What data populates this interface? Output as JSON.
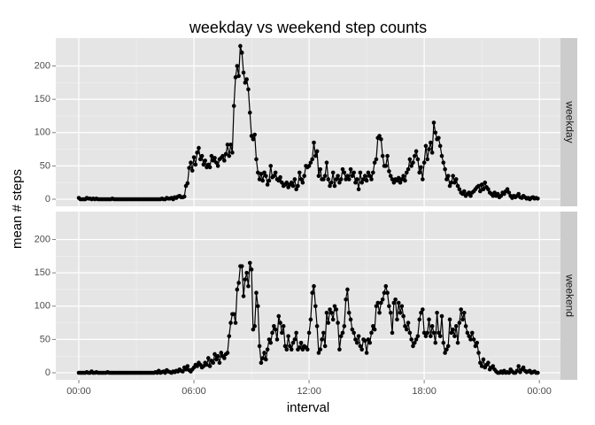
{
  "chart_data": {
    "type": "line",
    "title": "weekday vs weekend step counts",
    "xlabel": "interval",
    "ylabel": "mean # steps",
    "facet": "rows",
    "grid": true,
    "point_color": "#000000",
    "x": [
      0,
      5,
      10,
      15,
      20,
      25,
      30,
      35,
      40,
      45,
      50,
      55,
      60,
      65,
      70,
      75,
      80,
      85,
      90,
      95,
      100,
      105,
      110,
      115,
      120,
      125,
      130,
      135,
      140,
      145,
      150,
      155,
      160,
      165,
      170,
      175,
      180,
      185,
      190,
      195,
      200,
      205,
      210,
      215,
      220,
      225,
      230,
      235,
      240,
      245,
      250,
      255,
      260,
      265,
      270,
      275,
      280,
      285,
      290,
      295,
      300,
      305,
      310,
      315,
      320,
      325,
      330,
      335,
      340,
      345,
      350,
      355,
      360,
      365,
      370,
      375,
      380,
      385,
      390,
      395,
      400,
      405,
      410,
      415,
      420,
      425,
      430,
      435,
      440,
      445,
      450,
      455,
      460,
      465,
      470,
      475,
      480,
      485,
      490,
      495,
      500,
      505,
      510,
      515,
      520,
      525,
      530,
      535,
      540,
      545,
      550,
      555,
      560,
      565,
      570,
      575,
      580,
      585,
      590,
      595,
      600,
      605,
      610,
      615,
      620,
      625,
      630,
      635,
      640,
      645,
      650,
      655,
      660,
      665,
      670,
      675,
      680,
      685,
      690,
      695,
      700,
      705,
      710,
      715,
      720,
      725,
      730,
      735,
      740,
      745,
      750,
      755,
      760,
      765,
      770,
      775,
      780,
      785,
      790,
      795,
      800,
      805,
      810,
      815,
      820,
      825,
      830,
      835,
      840,
      845,
      850,
      855,
      860,
      865,
      870,
      875,
      880,
      885,
      890,
      895,
      900,
      905,
      910,
      915,
      920,
      925,
      930,
      935,
      940,
      945,
      950,
      955,
      960,
      965,
      970,
      975,
      980,
      985,
      990,
      995,
      1000,
      1005,
      1010,
      1015,
      1020,
      1025,
      1030,
      1035,
      1040,
      1045,
      1050,
      1055,
      1060,
      1065,
      1070,
      1075,
      1080,
      1085,
      1090,
      1095,
      1100,
      1105,
      1110,
      1115,
      1120,
      1125,
      1130,
      1135,
      1140,
      1145,
      1150,
      1155,
      1160,
      1165,
      1170,
      1175,
      1180,
      1185,
      1190,
      1195,
      1200,
      1205,
      1210,
      1215,
      1220,
      1225,
      1230,
      1235,
      1240,
      1245,
      1250,
      1255,
      1260,
      1265,
      1270,
      1275,
      1280,
      1285,
      1290,
      1295,
      1300,
      1305,
      1310,
      1315,
      1320,
      1325,
      1330,
      1335,
      1340,
      1345,
      1350,
      1355,
      1360,
      1365,
      1370,
      1375,
      1380,
      1385,
      1390,
      1395,
      1400,
      1405,
      1410,
      1415,
      1420,
      1425,
      1430,
      1435
    ],
    "xlim": [
      -72,
      1506
    ],
    "xticks": [
      {
        "value": 0,
        "label": "00:00"
      },
      {
        "value": 360,
        "label": "06:00"
      },
      {
        "value": 720,
        "label": "12:00"
      },
      {
        "value": 1080,
        "label": "18:00"
      },
      {
        "value": 1440,
        "label": "00:00"
      }
    ],
    "ylim": [
      -10.6,
      241.9
    ],
    "yticks": [
      0,
      50,
      100,
      150,
      200
    ],
    "series": [
      {
        "name": "weekday",
        "color": "#000000",
        "values": [
          2,
          0,
          0,
          0,
          0,
          2,
          1,
          1,
          0,
          1,
          0,
          1,
          0,
          0,
          0,
          0,
          0,
          0,
          0,
          0,
          0,
          1,
          0,
          0,
          0,
          0,
          0,
          0,
          0,
          0,
          0,
          0,
          0,
          0,
          0,
          0,
          0,
          0,
          0,
          0,
          0,
          0,
          0,
          0,
          0,
          0,
          0,
          0,
          0,
          0,
          0,
          0,
          1,
          0,
          0,
          2,
          1,
          1,
          2,
          0,
          3,
          2,
          4,
          5,
          3,
          3,
          4,
          20,
          24,
          47,
          55,
          43,
          63,
          52,
          70,
          77,
          60,
          65,
          52,
          58,
          48,
          52,
          48,
          65,
          58,
          62,
          55,
          50,
          60,
          62,
          65,
          58,
          68,
          82,
          65,
          82,
          70,
          140,
          183,
          200,
          185,
          230,
          220,
          190,
          175,
          180,
          165,
          130,
          95,
          90,
          97,
          60,
          40,
          30,
          38,
          28,
          40,
          35,
          22,
          28,
          50,
          33,
          35,
          40,
          30,
          28,
          33,
          25,
          20,
          22,
          25,
          18,
          22,
          25,
          20,
          30,
          15,
          20,
          40,
          30,
          25,
          35,
          50,
          48,
          50,
          55,
          60,
          85,
          65,
          72,
          35,
          45,
          30,
          30,
          35,
          55,
          30,
          20,
          25,
          40,
          20,
          30,
          35,
          25,
          30,
          45,
          40,
          30,
          35,
          30,
          45,
          35,
          40,
          25,
          30,
          15,
          40,
          25,
          30,
          35,
          28,
          40,
          35,
          30,
          40,
          55,
          60,
          92,
          95,
          90,
          65,
          50,
          50,
          65,
          42,
          35,
          30,
          25,
          30,
          28,
          32,
          25,
          30,
          35,
          28,
          40,
          45,
          60,
          50,
          55,
          65,
          72,
          60,
          40,
          48,
          30,
          55,
          80,
          60,
          75,
          85,
          70,
          115,
          100,
          90,
          92,
          80,
          65,
          55,
          45,
          30,
          35,
          20,
          25,
          35,
          25,
          30,
          20,
          15,
          10,
          8,
          12,
          5,
          8,
          10,
          5,
          10,
          12,
          15,
          18,
          20,
          12,
          22,
          15,
          25,
          18,
          15,
          10,
          8,
          5,
          10,
          5,
          8,
          3,
          5,
          10,
          8,
          12,
          15,
          10,
          5,
          2,
          5,
          3,
          5,
          8,
          3,
          2,
          5,
          3,
          1,
          2,
          0,
          2,
          3,
          1,
          2,
          1
        ]
      },
      {
        "name": "weekend",
        "color": "#000000",
        "values": [
          0,
          0,
          0,
          0,
          0,
          1,
          0,
          0,
          2,
          0,
          0,
          1,
          0,
          0,
          0,
          0,
          0,
          0,
          1,
          0,
          0,
          0,
          0,
          0,
          0,
          0,
          0,
          0,
          0,
          0,
          0,
          0,
          0,
          0,
          0,
          0,
          0,
          0,
          0,
          0,
          0,
          0,
          0,
          0,
          0,
          0,
          0,
          0,
          1,
          0,
          3,
          0,
          1,
          2,
          0,
          4,
          2,
          1,
          0,
          2,
          1,
          3,
          2,
          5,
          3,
          2,
          8,
          5,
          10,
          4,
          2,
          5,
          8,
          12,
          10,
          15,
          12,
          8,
          10,
          15,
          12,
          22,
          10,
          18,
          15,
          28,
          20,
          25,
          15,
          30,
          25,
          22,
          28,
          30,
          55,
          75,
          88,
          88,
          75,
          125,
          135,
          160,
          160,
          115,
          140,
          150,
          130,
          165,
          155,
          65,
          70,
          120,
          100,
          40,
          15,
          22,
          30,
          20,
          35,
          50,
          45,
          60,
          70,
          65,
          50,
          85,
          75,
          60,
          70,
          40,
          35,
          55,
          40,
          35,
          45,
          50,
          60,
          35,
          38,
          45,
          35,
          40,
          38,
          35,
          60,
          80,
          120,
          130,
          100,
          70,
          30,
          35,
          50,
          60,
          40,
          90,
          75,
          95,
          90,
          80,
          100,
          95,
          75,
          35,
          55,
          60,
          70,
          110,
          125,
          90,
          80,
          65,
          60,
          50,
          45,
          55,
          40,
          35,
          50,
          48,
          30,
          50,
          45,
          60,
          70,
          65,
          100,
          105,
          90,
          105,
          110,
          120,
          130,
          120,
          100,
          90,
          60,
          105,
          110,
          80,
          105,
          90,
          100,
          85,
          70,
          65,
          75,
          60,
          50,
          40,
          45,
          50,
          55,
          80,
          90,
          95,
          60,
          55,
          60,
          80,
          55,
          70,
          60,
          45,
          90,
          60,
          55,
          85,
          45,
          30,
          35,
          40,
          80,
          60,
          65,
          55,
          70,
          45,
          75,
          95,
          80,
          90,
          70,
          60,
          55,
          50,
          60,
          50,
          40,
          45,
          30,
          15,
          10,
          20,
          8,
          12,
          15,
          5,
          8,
          10,
          5,
          2,
          0,
          0,
          2,
          0,
          3,
          0,
          1,
          0,
          5,
          2,
          0,
          0,
          3,
          10,
          1,
          5,
          8,
          3,
          1,
          2,
          3,
          0,
          1,
          2,
          0,
          0
        ]
      }
    ]
  }
}
